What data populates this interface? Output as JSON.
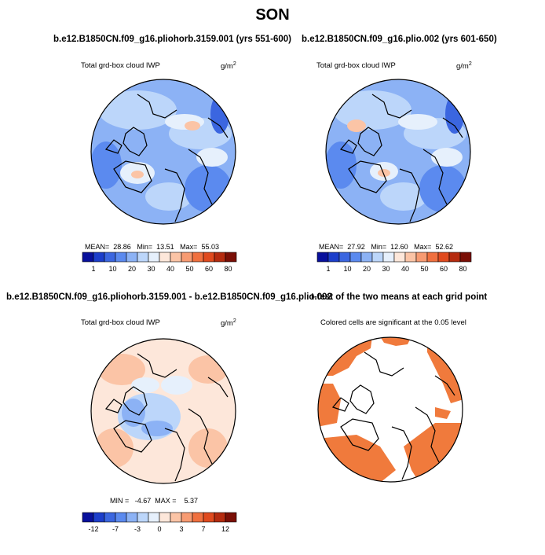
{
  "figure": {
    "title": "SON"
  },
  "colors": {
    "abs_scale": [
      "#08109c",
      "#1c3ecb",
      "#3b66e0",
      "#5b8aef",
      "#8cb2f5",
      "#bcd6fa",
      "#e6f0fc",
      "#fde7da",
      "#fbc4a6",
      "#f79b72",
      "#f0703f",
      "#e04a1e",
      "#b52b0f",
      "#7a0f06"
    ],
    "diff_scale": [
      "#08109c",
      "#1c3ecb",
      "#3b66e0",
      "#5b8aef",
      "#8cb2f5",
      "#bcd6fa",
      "#e6f0fc",
      "#fde7da",
      "#fbc4a6",
      "#f79b72",
      "#f0703f",
      "#e04a1e",
      "#b52b0f",
      "#7a0f06"
    ],
    "significant": "#f07a3c"
  },
  "panels": [
    {
      "title": "b.e12.B1850CN.f09_g16.pliohorb.3159.001 (yrs 551-600)",
      "field": "Total grd-box cloud IWP",
      "units_base": "g/m",
      "units_exp": "2",
      "mean_label": "MEAN=",
      "mean": "28.86",
      "min_label": "Min=",
      "min": "13.51",
      "max_label": "Max=",
      "max": "55.03",
      "ticks": [
        "1",
        "10",
        "20",
        "30",
        "40",
        "50",
        "60",
        "80"
      ]
    },
    {
      "title": "b.e12.B1850CN.f09_g16.plio.002 (yrs 601-650)",
      "field": "Total grd-box cloud IWP",
      "units_base": "g/m",
      "units_exp": "2",
      "mean_label": "MEAN=",
      "mean": "27.92",
      "min_label": "Min=",
      "min": "12.60",
      "max_label": "Max=",
      "max": "52.62",
      "ticks": [
        "1",
        "10",
        "20",
        "30",
        "40",
        "50",
        "60",
        "80"
      ]
    },
    {
      "title": "b.e12.B1850CN.f09_g16.pliohorb.3159.001 - b.e12.B1850CN.f09_g16.plio.002",
      "field": "Total grd-box cloud IWP",
      "units_base": "g/m",
      "units_exp": "2",
      "stats_line": "MIN =   -4.67  MAX =    5.37",
      "ticks": [
        "-12",
        "-7",
        "-3",
        "0",
        "3",
        "7",
        "12"
      ]
    },
    {
      "title": "t-test of the two means at each grid point",
      "subtitle": "Colored cells are significant at the 0.05 level"
    }
  ]
}
